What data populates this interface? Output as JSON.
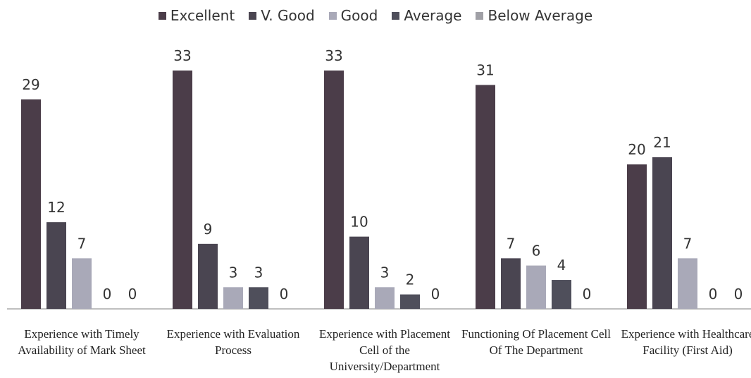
{
  "chart_data": {
    "type": "bar",
    "categories": [
      "Experience with Timely Availability of Mark Sheet",
      "Experience with Evaluation Process",
      "Experience with Placement Cell of the University/Department",
      "Functioning Of Placement Cell Of The Department",
      "Experience with Healthcare Facility (First Aid)"
    ],
    "series": [
      {
        "name": "Excellent",
        "color": "#4b3d49",
        "values": [
          29,
          33,
          33,
          31,
          20
        ]
      },
      {
        "name": "V. Good",
        "color": "#4a4551",
        "values": [
          12,
          9,
          10,
          7,
          21
        ]
      },
      {
        "name": "Good",
        "color": "#a9a9b8",
        "values": [
          7,
          3,
          3,
          6,
          7
        ]
      },
      {
        "name": "Average",
        "color": "#4f4f5b",
        "values": [
          0,
          3,
          2,
          4,
          0
        ]
      },
      {
        "name": "Below Average",
        "color": "#a0a0a6",
        "values": [
          0,
          0,
          0,
          0,
          0
        ]
      }
    ],
    "legend": "top"
  }
}
